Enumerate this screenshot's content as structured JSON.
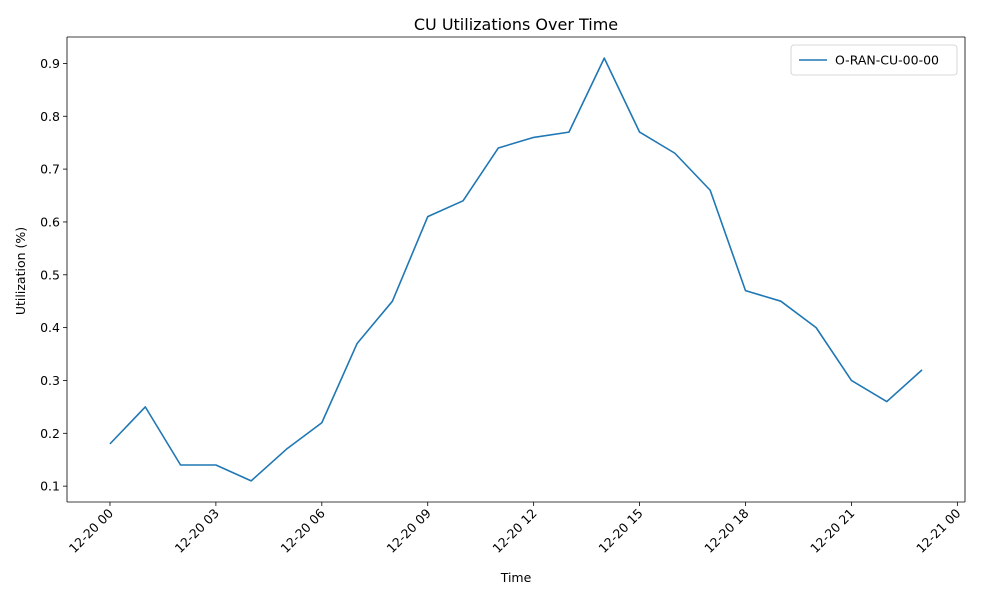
{
  "chart_data": {
    "type": "line",
    "title": "CU Utilizations Over Time",
    "xlabel": "Time",
    "ylabel": "Utilization (%)",
    "x_tick_labels": [
      "12-20 00",
      "12-20 03",
      "12-20 06",
      "12-20 09",
      "12-20 12",
      "12-20 15",
      "12-20 18",
      "12-20 21",
      "12-21 00"
    ],
    "x_tick_values": [
      "12-20 00:00",
      "12-20 03:00",
      "12-20 06:00",
      "12-20 09:00",
      "12-20 12:00",
      "12-20 15:00",
      "12-20 18:00",
      "12-20 21:00",
      "12-21 00:00"
    ],
    "y_ticks": [
      0.1,
      0.2,
      0.3,
      0.4,
      0.5,
      0.6,
      0.7,
      0.8,
      0.9
    ],
    "xlim": [
      "12-19 22:47",
      "12-21 00:13"
    ],
    "ylim": [
      0.07,
      0.95
    ],
    "grid": false,
    "legend_position": "upper right",
    "x": [
      "12-20 00:00",
      "12-20 01:00",
      "12-20 02:00",
      "12-20 03:00",
      "12-20 04:00",
      "12-20 05:00",
      "12-20 06:00",
      "12-20 07:00",
      "12-20 08:00",
      "12-20 09:00",
      "12-20 10:00",
      "12-20 11:00",
      "12-20 12:00",
      "12-20 13:00",
      "12-20 14:00",
      "12-20 15:00",
      "12-20 16:00",
      "12-20 17:00",
      "12-20 18:00",
      "12-20 19:00",
      "12-20 20:00",
      "12-20 21:00",
      "12-20 22:00",
      "12-20 23:00"
    ],
    "series": [
      {
        "name": "O-RAN-CU-00-00",
        "color": "#1f77b4",
        "values": [
          0.18,
          0.25,
          0.14,
          0.14,
          0.11,
          0.17,
          0.22,
          0.37,
          0.45,
          0.61,
          0.64,
          0.74,
          0.76,
          0.77,
          0.91,
          0.77,
          0.73,
          0.66,
          0.47,
          0.45,
          0.4,
          0.3,
          0.26,
          0.32
        ]
      }
    ]
  }
}
